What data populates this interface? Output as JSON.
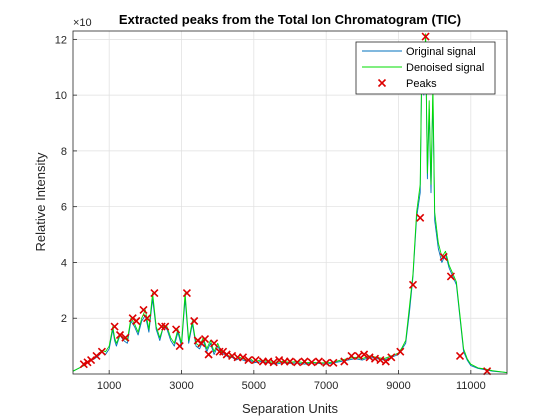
{
  "chart_data": {
    "type": "line",
    "title": "Extracted peaks from the Total Ion Chromatogram (TIC)",
    "xlabel": "Separation Units",
    "ylabel": "Relative Intensity",
    "y_exponent_label": "×10",
    "xlim": [
      0,
      12000
    ],
    "ylim": [
      0,
      12.3
    ],
    "xticks": [
      1000,
      3000,
      5000,
      7000,
      9000,
      11000
    ],
    "xtick_labels": [
      "1000",
      "3000",
      "5000",
      "7000",
      "9000",
      "11000"
    ],
    "yticks": [
      2,
      4,
      6,
      8,
      10,
      12
    ],
    "ytick_labels": [
      "2",
      "4",
      "6",
      "8",
      "10",
      "12"
    ],
    "grid": true,
    "legend_position": "top-right",
    "colors": {
      "original": "#0072BD",
      "denoised": "#00DD00",
      "peaks": "#DD0000",
      "axes": "#262626",
      "grid": "#DFDFDF"
    },
    "series": [
      {
        "name": "Original signal",
        "kind": "line",
        "x": [
          0,
          300,
          400,
          500,
          600,
          700,
          800,
          900,
          1000,
          1100,
          1150,
          1200,
          1300,
          1400,
          1500,
          1600,
          1700,
          1800,
          1900,
          2000,
          2100,
          2200,
          2300,
          2400,
          2500,
          2600,
          2700,
          2800,
          2900,
          3000,
          3100,
          3200,
          3300,
          3400,
          3500,
          3600,
          3700,
          3800,
          3900,
          4000,
          4100,
          4200,
          4300,
          4400,
          4500,
          4600,
          4700,
          4800,
          4900,
          5000,
          5200,
          5400,
          5600,
          5800,
          6000,
          6200,
          6400,
          6600,
          6800,
          7000,
          7200,
          7400,
          7600,
          7800,
          8000,
          8200,
          8400,
          8600,
          8800,
          9000,
          9100,
          9200,
          9300,
          9400,
          9500,
          9600,
          9650,
          9700,
          9750,
          9800,
          9850,
          9900,
          9950,
          10000,
          10100,
          10200,
          10300,
          10400,
          10500,
          10600,
          10700,
          10800,
          10900,
          11000,
          11200,
          11400,
          11600,
          12000
        ],
        "y": [
          0.1,
          0.3,
          0.4,
          0.5,
          0.55,
          0.65,
          0.8,
          0.7,
          0.9,
          1.6,
          1.2,
          1.0,
          1.4,
          1.2,
          1.1,
          1.9,
          1.7,
          1.4,
          1.9,
          2.1,
          1.5,
          2.7,
          1.6,
          1.2,
          1.7,
          1.6,
          1.2,
          1.0,
          1.5,
          1.0,
          2.7,
          1.1,
          1.8,
          1.0,
          0.9,
          1.2,
          0.8,
          1.1,
          0.7,
          1.0,
          0.75,
          0.7,
          0.6,
          0.6,
          0.5,
          0.55,
          0.5,
          0.45,
          0.5,
          0.4,
          0.45,
          0.4,
          0.35,
          0.4,
          0.38,
          0.4,
          0.35,
          0.4,
          0.38,
          0.35,
          0.4,
          0.45,
          0.5,
          0.55,
          0.5,
          0.6,
          0.55,
          0.5,
          0.6,
          0.7,
          0.9,
          1.1,
          2.2,
          3.5,
          5.6,
          6.5,
          11.5,
          10.0,
          12.0,
          7.0,
          9.5,
          6.5,
          10.0,
          5.5,
          4.5,
          4.0,
          4.3,
          3.8,
          3.5,
          3.2,
          2.0,
          0.8,
          0.5,
          0.3,
          0.2,
          0.15,
          0.1,
          0.05
        ]
      },
      {
        "name": "Denoised signal",
        "kind": "line",
        "x": [
          0,
          300,
          400,
          500,
          600,
          700,
          800,
          900,
          1000,
          1100,
          1150,
          1200,
          1300,
          1400,
          1500,
          1600,
          1700,
          1800,
          1900,
          2000,
          2100,
          2200,
          2300,
          2400,
          2500,
          2600,
          2700,
          2800,
          2900,
          3000,
          3100,
          3200,
          3300,
          3400,
          3500,
          3600,
          3700,
          3800,
          3900,
          4000,
          4100,
          4200,
          4300,
          4400,
          4500,
          4600,
          4700,
          4800,
          4900,
          5000,
          5200,
          5400,
          5600,
          5800,
          6000,
          6200,
          6400,
          6600,
          6800,
          7000,
          7200,
          7400,
          7600,
          7800,
          8000,
          8200,
          8400,
          8600,
          8800,
          9000,
          9100,
          9200,
          9300,
          9400,
          9500,
          9600,
          9650,
          9700,
          9750,
          9800,
          9850,
          9900,
          9950,
          10000,
          10100,
          10200,
          10300,
          10400,
          10500,
          10600,
          10700,
          10800,
          10900,
          11000,
          11200,
          11400,
          11600,
          12000
        ],
        "y": [
          0.1,
          0.3,
          0.42,
          0.5,
          0.6,
          0.7,
          0.85,
          0.8,
          1.0,
          1.7,
          1.3,
          1.1,
          1.4,
          1.3,
          1.2,
          2.0,
          1.8,
          1.5,
          2.0,
          2.3,
          1.6,
          2.9,
          1.7,
          1.3,
          1.7,
          1.7,
          1.3,
          1.1,
          1.6,
          1.1,
          2.9,
          1.2,
          1.9,
          1.1,
          1.0,
          1.3,
          0.9,
          1.2,
          0.8,
          1.1,
          0.8,
          0.75,
          0.65,
          0.65,
          0.55,
          0.6,
          0.55,
          0.5,
          0.55,
          0.45,
          0.5,
          0.45,
          0.4,
          0.45,
          0.42,
          0.45,
          0.4,
          0.42,
          0.4,
          0.4,
          0.42,
          0.5,
          0.55,
          0.6,
          0.55,
          0.65,
          0.6,
          0.55,
          0.65,
          0.75,
          0.95,
          1.2,
          2.4,
          3.6,
          5.8,
          6.8,
          11.8,
          10.2,
          12.2,
          7.2,
          9.8,
          6.8,
          10.3,
          5.8,
          4.7,
          4.2,
          4.4,
          3.9,
          3.6,
          3.3,
          2.1,
          0.9,
          0.55,
          0.35,
          0.22,
          0.18,
          0.12,
          0.05
        ]
      },
      {
        "name": "Peaks",
        "kind": "markers",
        "x": [
          300,
          400,
          500,
          650,
          800,
          1150,
          1300,
          1450,
          1650,
          1750,
          1950,
          2050,
          2250,
          2450,
          2550,
          2850,
          2950,
          3150,
          3350,
          3450,
          3550,
          3650,
          3750,
          3900,
          4050,
          4150,
          4250,
          4400,
          4550,
          4700,
          4850,
          5050,
          5250,
          5400,
          5550,
          5700,
          5850,
          6000,
          6200,
          6400,
          6600,
          6800,
          7000,
          7200,
          7500,
          7700,
          7900,
          8050,
          8200,
          8350,
          8500,
          8650,
          8800,
          9050,
          9400,
          9600,
          9750,
          10250,
          10450,
          10700,
          11450
        ],
        "y": [
          0.35,
          0.42,
          0.5,
          0.65,
          0.8,
          1.7,
          1.4,
          1.3,
          2.0,
          1.9,
          2.3,
          2.0,
          2.9,
          1.7,
          1.7,
          1.6,
          1.0,
          2.9,
          1.9,
          1.2,
          1.1,
          1.25,
          0.7,
          1.1,
          0.8,
          0.8,
          0.7,
          0.65,
          0.6,
          0.6,
          0.5,
          0.5,
          0.45,
          0.45,
          0.42,
          0.5,
          0.45,
          0.45,
          0.42,
          0.45,
          0.42,
          0.45,
          0.4,
          0.4,
          0.45,
          0.65,
          0.65,
          0.7,
          0.6,
          0.55,
          0.5,
          0.45,
          0.6,
          0.8,
          3.2,
          5.6,
          12.1,
          4.2,
          3.5,
          0.65,
          0.1
        ]
      }
    ]
  }
}
